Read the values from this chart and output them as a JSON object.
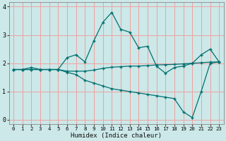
{
  "title": "",
  "xlabel": "Humidex (Indice chaleur)",
  "bg_color": "#cce8e8",
  "grid_color": "#f0a0a0",
  "line_color": "#007070",
  "xlim": [
    -0.5,
    23.5
  ],
  "ylim": [
    -0.15,
    4.15
  ],
  "xticks": [
    0,
    1,
    2,
    3,
    4,
    5,
    6,
    7,
    8,
    9,
    10,
    11,
    12,
    13,
    14,
    15,
    16,
    17,
    18,
    19,
    20,
    21,
    22,
    23
  ],
  "yticks": [
    0,
    1,
    2,
    3,
    4
  ],
  "line1_y": [
    1.78,
    1.78,
    1.85,
    1.78,
    1.78,
    1.78,
    2.2,
    2.3,
    2.05,
    2.8,
    3.45,
    3.8,
    3.2,
    3.1,
    2.55,
    2.6,
    1.9,
    1.65,
    1.85,
    1.9,
    2.0,
    2.3,
    2.5,
    2.05
  ],
  "line2_y": [
    1.78,
    1.78,
    1.78,
    1.78,
    1.78,
    1.78,
    1.72,
    1.72,
    1.72,
    1.76,
    1.82,
    1.86,
    1.88,
    1.9,
    1.9,
    1.92,
    1.94,
    1.95,
    1.96,
    1.98,
    2.0,
    2.02,
    2.04,
    2.05
  ],
  "line3_y": [
    1.78,
    1.78,
    1.78,
    1.78,
    1.78,
    1.78,
    1.68,
    1.6,
    1.4,
    1.3,
    1.2,
    1.1,
    1.05,
    1.0,
    0.95,
    0.9,
    0.85,
    0.8,
    0.75,
    0.28,
    0.08,
    1.0,
    2.0,
    2.05
  ]
}
